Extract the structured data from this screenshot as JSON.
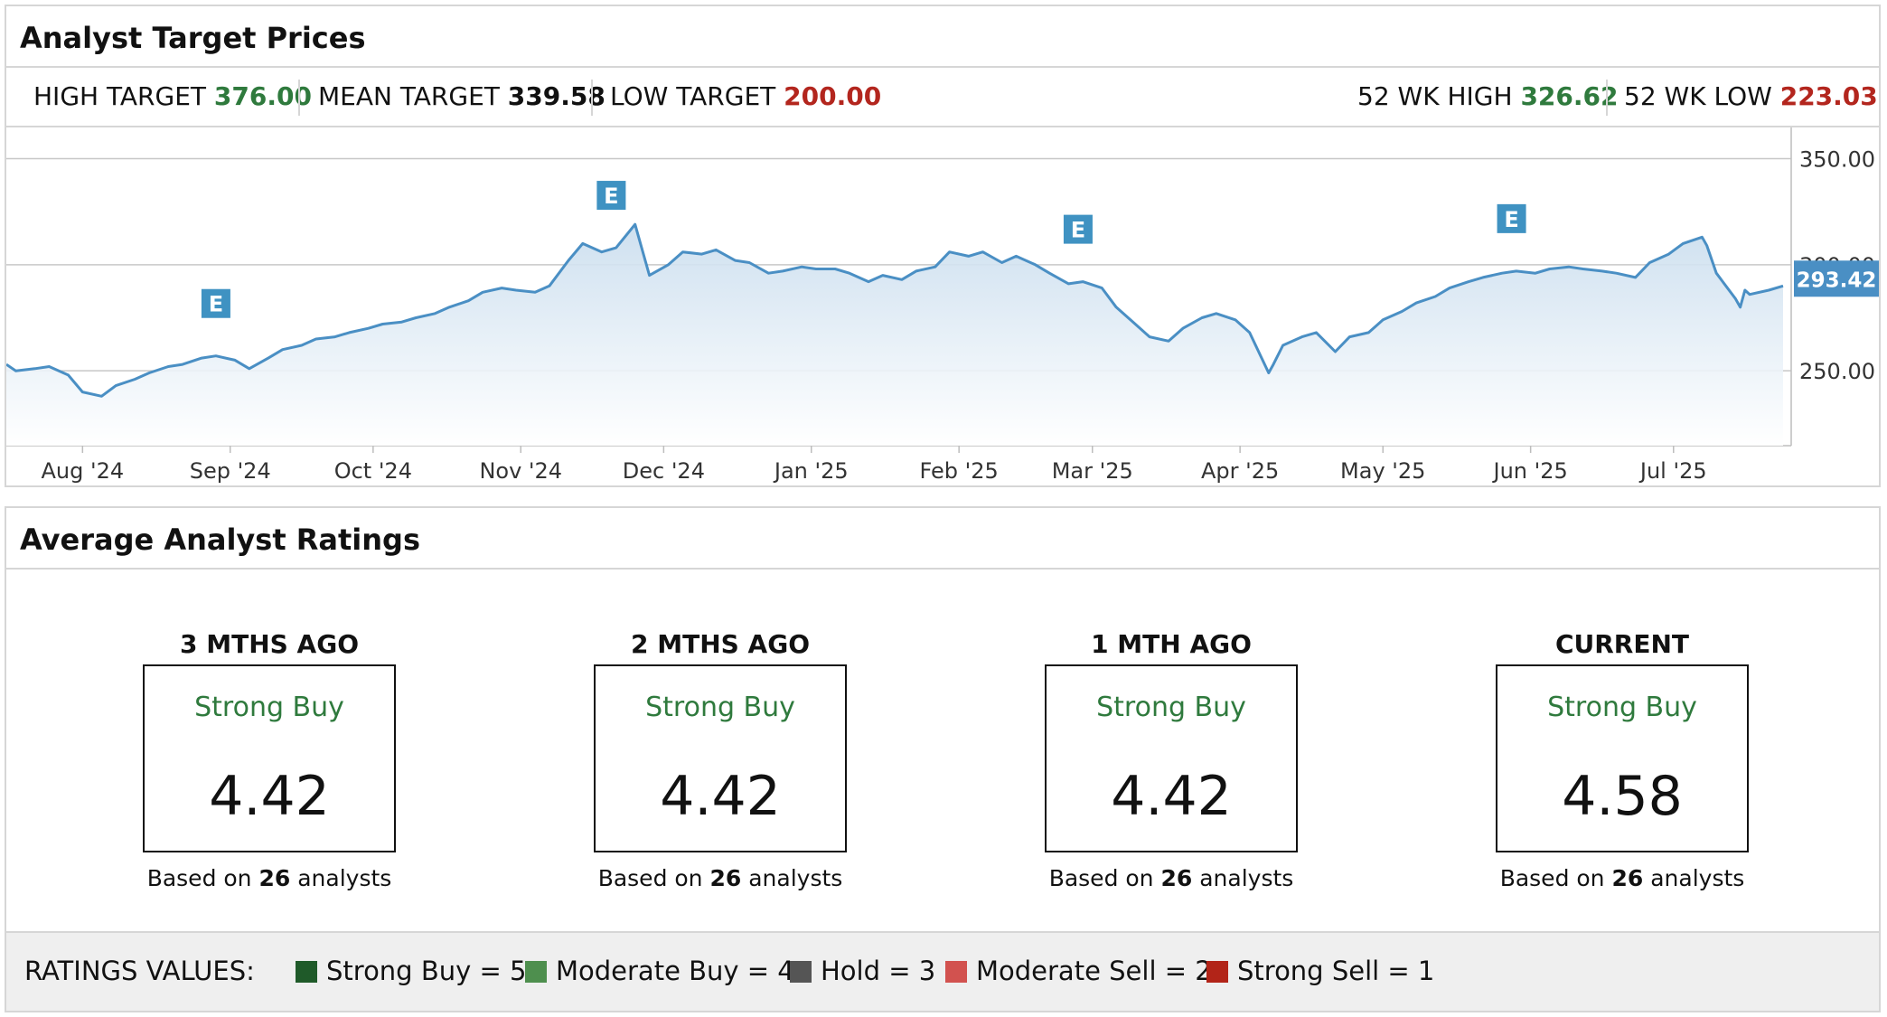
{
  "targets_panel": {
    "title": "Analyst Target Prices",
    "high_target": {
      "label": "HIGH TARGET",
      "value": "376.00"
    },
    "mean_target": {
      "label": "MEAN TARGET",
      "value": "339.58"
    },
    "low_target": {
      "label": "LOW TARGET",
      "value": "200.00"
    },
    "wk52_high": {
      "label": "52 WK HIGH",
      "value": "326.62"
    },
    "wk52_low": {
      "label": "52 WK LOW",
      "value": "223.03"
    }
  },
  "chart_data": {
    "type": "area",
    "title": "",
    "xlabel": "",
    "ylabel": "",
    "x_ticks": [
      "Aug '24",
      "Sep '24",
      "Oct '24",
      "Nov '24",
      "Dec '24",
      "Jan '25",
      "Feb '25",
      "Mar '25",
      "Apr '25",
      "May '25",
      "Jun '25",
      "Jul '25"
    ],
    "y_ticks": [
      "350.00",
      "300.00",
      "250.00"
    ],
    "ylim": [
      214.7,
      364.7
    ],
    "current_price": "293.42",
    "earnings_marker_label": "E",
    "earnings_markers": [
      {
        "date": "2024-08-29"
      },
      {
        "date": "2024-11-20"
      },
      {
        "date": "2025-02-26"
      },
      {
        "date": "2025-05-28"
      }
    ],
    "grid": true,
    "series": [
      {
        "color": "#4a8fc4",
        "x": [
          "2024-07-16",
          "2024-07-18",
          "2024-07-22",
          "2024-07-25",
          "2024-07-29",
          "2024-08-01",
          "2024-08-05",
          "2024-08-08",
          "2024-08-12",
          "2024-08-15",
          "2024-08-19",
          "2024-08-22",
          "2024-08-26",
          "2024-08-29",
          "2024-09-02",
          "2024-09-05",
          "2024-09-09",
          "2024-09-12",
          "2024-09-16",
          "2024-09-19",
          "2024-09-23",
          "2024-09-26",
          "2024-09-30",
          "2024-10-03",
          "2024-10-07",
          "2024-10-10",
          "2024-10-14",
          "2024-10-17",
          "2024-10-21",
          "2024-10-24",
          "2024-10-28",
          "2024-10-31",
          "2024-11-04",
          "2024-11-07",
          "2024-11-11",
          "2024-11-14",
          "2024-11-18",
          "2024-11-21",
          "2024-11-25",
          "2024-11-28",
          "2024-12-02",
          "2024-12-05",
          "2024-12-09",
          "2024-12-12",
          "2024-12-16",
          "2024-12-19",
          "2024-12-23",
          "2024-12-26",
          "2024-12-30",
          "2025-01-02",
          "2025-01-06",
          "2025-01-09",
          "2025-01-13",
          "2025-01-16",
          "2025-01-20",
          "2025-01-23",
          "2025-01-27",
          "2025-01-30",
          "2025-02-03",
          "2025-02-06",
          "2025-02-10",
          "2025-02-13",
          "2025-02-17",
          "2025-02-20",
          "2025-02-24",
          "2025-02-27",
          "2025-03-03",
          "2025-03-06",
          "2025-03-10",
          "2025-03-13",
          "2025-03-17",
          "2025-03-20",
          "2025-03-24",
          "2025-03-27",
          "2025-03-31",
          "2025-04-03",
          "2025-04-07",
          "2025-04-08",
          "2025-04-10",
          "2025-04-14",
          "2025-04-17",
          "2025-04-21",
          "2025-04-24",
          "2025-04-28",
          "2025-05-01",
          "2025-05-05",
          "2025-05-08",
          "2025-05-12",
          "2025-05-15",
          "2025-05-19",
          "2025-05-22",
          "2025-05-26",
          "2025-05-29",
          "2025-06-02",
          "2025-06-05",
          "2025-06-09",
          "2025-06-12",
          "2025-06-16",
          "2025-06-19",
          "2025-06-23",
          "2025-06-26",
          "2025-06-30",
          "2025-07-03",
          "2025-07-07",
          "2025-07-08",
          "2025-07-10",
          "2025-07-14",
          "2025-07-15",
          "2025-07-16",
          "2025-07-17",
          "2025-07-21",
          "2025-07-24"
        ],
        "values": [
          253,
          250,
          251,
          252,
          248,
          240,
          238,
          243,
          246,
          249,
          252,
          253,
          256,
          257,
          255,
          251,
          256,
          260,
          262,
          265,
          266,
          268,
          270,
          272,
          273,
          275,
          277,
          280,
          283,
          287,
          289,
          288,
          287,
          290,
          302,
          310,
          306,
          308,
          319,
          295,
          300,
          306,
          305,
          307,
          302,
          301,
          296,
          297,
          299,
          298,
          298,
          296,
          292,
          295,
          293,
          297,
          299,
          306,
          304,
          306,
          301,
          304,
          300,
          296,
          291,
          292,
          289,
          280,
          272,
          266,
          264,
          270,
          275,
          277,
          274,
          268,
          249,
          253,
          262,
          266,
          268,
          259,
          266,
          268,
          274,
          278,
          282,
          285,
          289,
          292,
          294,
          296,
          297,
          296,
          298,
          299,
          298,
          297,
          296,
          294,
          301,
          305,
          310,
          313,
          309,
          296,
          284,
          280,
          288,
          286,
          288,
          290
        ]
      }
    ]
  },
  "ratings_panel": {
    "title": "Average Analyst Ratings",
    "based_prefix": "Based on",
    "based_suffix": "analysts",
    "periods": [
      {
        "title": "3 MTHS AGO",
        "rating": "Strong Buy",
        "score": "4.42",
        "analysts": "26"
      },
      {
        "title": "2 MTHS AGO",
        "rating": "Strong Buy",
        "score": "4.42",
        "analysts": "26"
      },
      {
        "title": "1 MTH AGO",
        "rating": "Strong Buy",
        "score": "4.42",
        "analysts": "26"
      },
      {
        "title": "CURRENT",
        "rating": "Strong Buy",
        "score": "4.58",
        "analysts": "26"
      }
    ],
    "legend": {
      "title": "RATINGS VALUES:",
      "items": [
        {
          "label": "Strong Buy = 5",
          "color": "#1f5a29"
        },
        {
          "label": "Moderate Buy = 4",
          "color": "#4e8f4e"
        },
        {
          "label": "Hold = 3",
          "color": "#555555"
        },
        {
          "label": "Moderate Sell = 2",
          "color": "#d2524f"
        },
        {
          "label": "Strong Sell = 1",
          "color": "#b22418"
        }
      ]
    }
  }
}
